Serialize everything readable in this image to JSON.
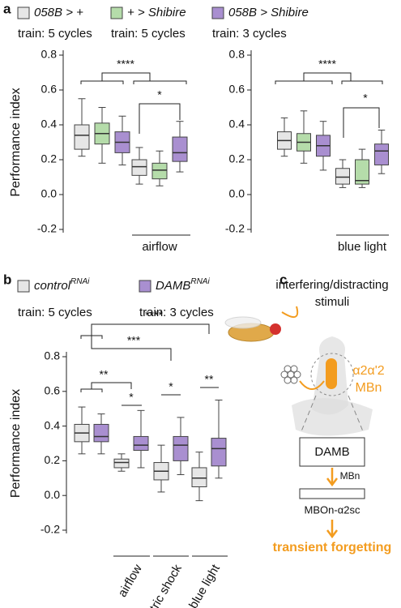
{
  "panels": [
    "a",
    "b",
    "c"
  ],
  "chart_data": [
    {
      "type": "box",
      "ylabel": "Performance index",
      "ylim": [
        -0.2,
        0.8
      ],
      "yticks": [
        -0.2,
        {
          "value": 0,
          "label": "0.0"
        },
        0.2,
        0.4,
        0.6,
        0.8
      ],
      "categories": [
        null,
        "airflow"
      ],
      "series": [
        {
          "name": "058B > +",
          "train": "train: 5 cycles",
          "color": "#e6e6e6",
          "boxes": [
            {
              "min": 0.22,
              "q1": 0.26,
              "median": 0.34,
              "q3": 0.4,
              "max": 0.55
            },
            {
              "min": 0.06,
              "q1": 0.11,
              "median": 0.16,
              "q3": 0.2,
              "max": 0.27
            }
          ]
        },
        {
          "name": "+ > Shibire",
          "train": "train: 5 cycles",
          "color": "#b5dcaa",
          "boxes": [
            {
              "min": 0.18,
              "q1": 0.29,
              "median": 0.35,
              "q3": 0.41,
              "max": 0.5
            },
            {
              "min": 0.05,
              "q1": 0.09,
              "median": 0.14,
              "q3": 0.18,
              "max": 0.25
            }
          ]
        },
        {
          "name": "058B > Shibire",
          "train": "train: 3 cycles",
          "color": "#a98fd0",
          "boxes": [
            {
              "min": 0.17,
              "q1": 0.24,
              "median": 0.3,
              "q3": 0.36,
              "max": 0.45
            },
            {
              "min": 0.13,
              "q1": 0.19,
              "median": 0.24,
              "q3": 0.33,
              "max": 0.42
            }
          ]
        }
      ],
      "annotations": [
        "****",
        "*"
      ]
    },
    {
      "type": "box",
      "ylim": [
        -0.2,
        0.8
      ],
      "yticks": [
        -0.2,
        {
          "value": 0,
          "label": "0.0"
        },
        0.2,
        0.4,
        0.6,
        0.8
      ],
      "categories": [
        null,
        "blue light"
      ],
      "series": [
        {
          "color": "#e6e6e6",
          "boxes": [
            {
              "min": 0.22,
              "q1": 0.26,
              "median": 0.31,
              "q3": 0.36,
              "max": 0.44
            },
            {
              "min": 0.04,
              "q1": 0.06,
              "median": 0.1,
              "q3": 0.15,
              "max": 0.2
            }
          ]
        },
        {
          "color": "#b5dcaa",
          "boxes": [
            {
              "min": 0.18,
              "q1": 0.25,
              "median": 0.3,
              "q3": 0.35,
              "max": 0.48
            },
            {
              "min": 0.04,
              "q1": 0.06,
              "median": 0.08,
              "q3": 0.2,
              "max": 0.26
            }
          ]
        },
        {
          "color": "#a98fd0",
          "boxes": [
            {
              "min": 0.14,
              "q1": 0.22,
              "median": 0.28,
              "q3": 0.34,
              "max": 0.42
            },
            {
              "min": 0.12,
              "q1": 0.17,
              "median": 0.25,
              "q3": 0.29,
              "max": 0.37
            }
          ]
        }
      ],
      "annotations": [
        "****",
        "*"
      ]
    },
    {
      "type": "box",
      "ylabel": "Performance index",
      "ylim": [
        -0.2,
        0.8
      ],
      "yticks": [
        -0.2,
        {
          "value": 0,
          "label": "0.0"
        },
        0.2,
        0.4,
        0.6,
        0.8
      ],
      "categories": [
        null,
        "airflow",
        "electric shock",
        "blue light"
      ],
      "series": [
        {
          "name": "control",
          "name_sup": "RNAi",
          "train": "train: 5 cycles",
          "color": "#e6e6e6",
          "boxes": [
            {
              "min": 0.24,
              "q1": 0.31,
              "median": 0.36,
              "q3": 0.41,
              "max": 0.51
            },
            {
              "min": 0.14,
              "q1": 0.16,
              "median": 0.19,
              "q3": 0.21,
              "max": 0.24
            },
            {
              "min": 0.02,
              "q1": 0.09,
              "median": 0.14,
              "q3": 0.19,
              "max": 0.29
            },
            {
              "min": -0.03,
              "q1": 0.05,
              "median": 0.1,
              "q3": 0.16,
              "max": 0.25
            }
          ]
        },
        {
          "name": "DAMB",
          "name_sup": "RNAi",
          "train": "train: 3 cycles",
          "color": "#a98fd0",
          "boxes": [
            {
              "min": 0.24,
              "q1": 0.31,
              "median": 0.34,
              "q3": 0.41,
              "max": 0.47
            },
            {
              "min": 0.16,
              "q1": 0.26,
              "median": 0.29,
              "q3": 0.34,
              "max": 0.49
            },
            {
              "min": 0.12,
              "q1": 0.2,
              "median": 0.29,
              "q3": 0.34,
              "max": 0.45
            },
            {
              "min": 0.1,
              "q1": 0.17,
              "median": 0.27,
              "q3": 0.33,
              "max": 0.55
            }
          ]
        }
      ],
      "annotations": [
        "****",
        "***",
        "**",
        "*",
        "*",
        "**"
      ]
    }
  ],
  "diagram": {
    "stimuli": [
      "interfering/distracting",
      "stimuli"
    ],
    "neuron": [
      "α2α'2",
      "MBn"
    ],
    "receptor": "DAMB",
    "source": "MBn",
    "target": "MBOn-α2sc",
    "outcome": "transient forgetting"
  }
}
